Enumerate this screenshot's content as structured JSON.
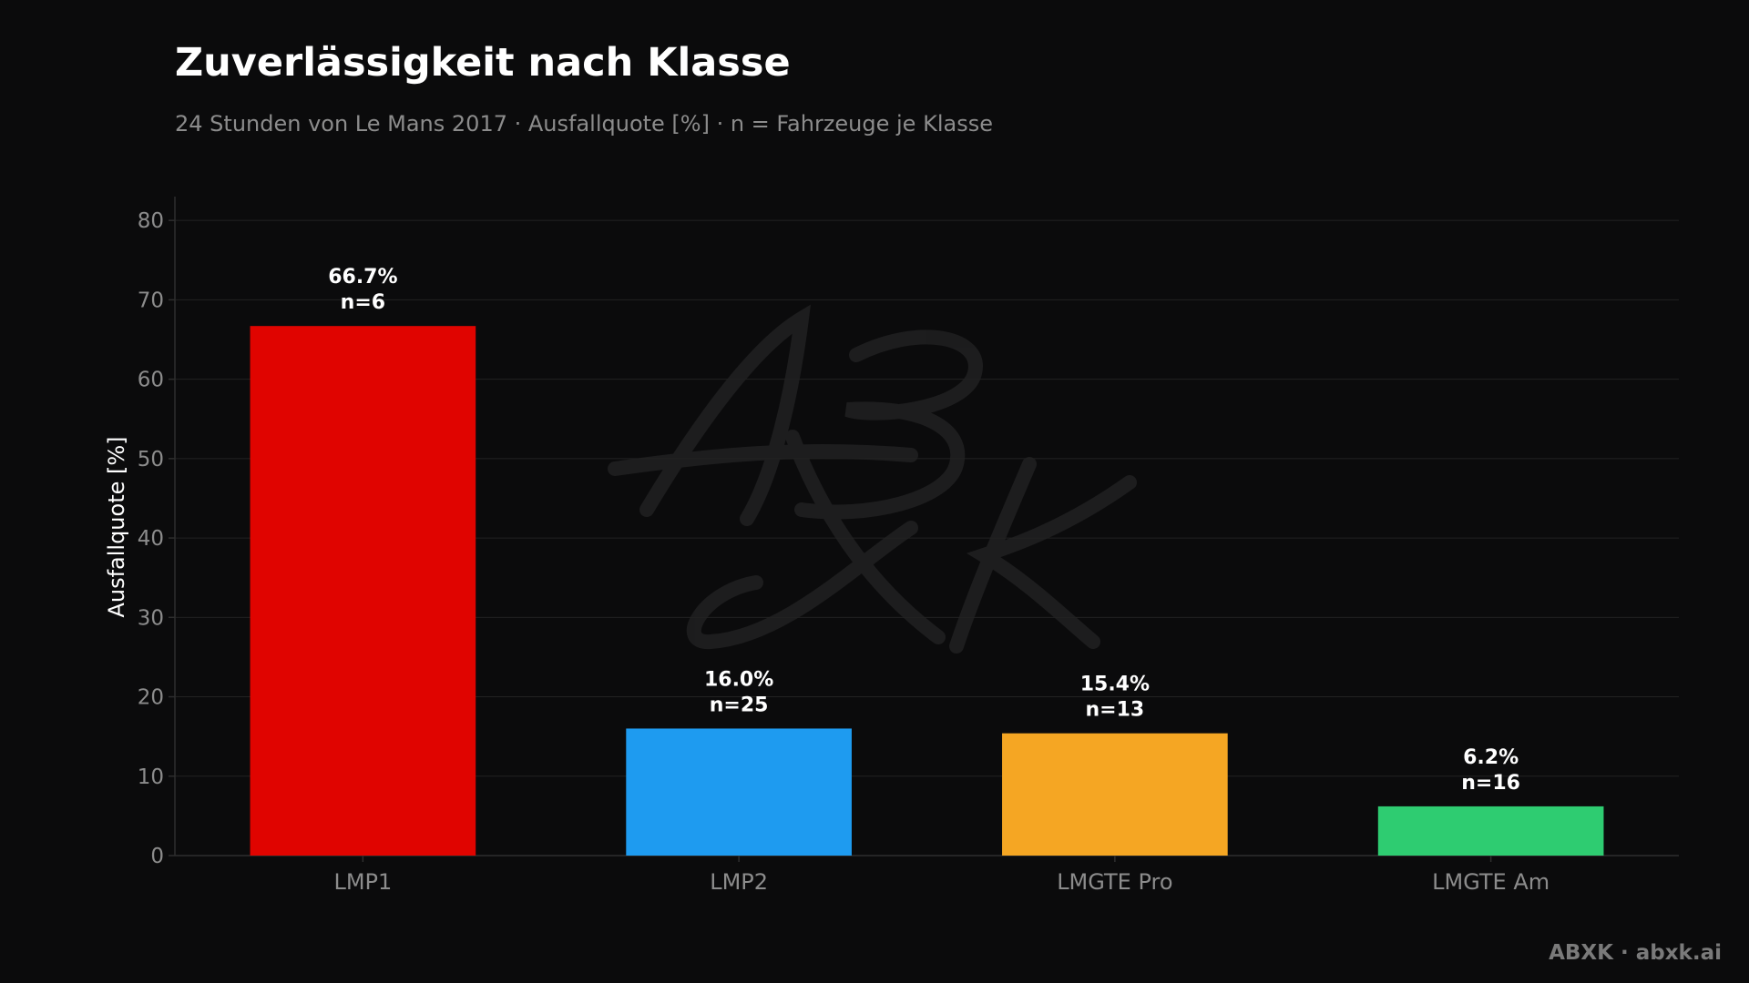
{
  "page": {
    "title": "Zuverlässigkeit nach Klasse",
    "subtitle": "24 Stunden von Le Mans 2017 · Ausfallquote [%] · n = Fahrzeuge je Klasse",
    "watermark": "ABXK",
    "footer": "ABXK · abxk.ai"
  },
  "chart_data": {
    "type": "bar",
    "title": "Zuverlässigkeit nach Klasse",
    "subtitle": "24 Stunden von Le Mans 2017 · Ausfallquote [%] · n = Fahrzeuge je Klasse",
    "xlabel": "",
    "ylabel": "Ausfallquote [%]",
    "ylim": [
      0,
      83
    ],
    "yticks": [
      0,
      10,
      20,
      30,
      40,
      50,
      60,
      70,
      80
    ],
    "grid": true,
    "categories": [
      "LMP1",
      "LMP2",
      "LMGTE Pro",
      "LMGTE Am"
    ],
    "values": [
      66.7,
      16.0,
      15.4,
      6.2
    ],
    "n": [
      6,
      25,
      13,
      16
    ],
    "value_labels": [
      "66.7%",
      "16.0%",
      "15.4%",
      "6.2%"
    ],
    "n_labels": [
      "n=6",
      "n=25",
      "n=13",
      "n=16"
    ],
    "colors": [
      "#e00400",
      "#1e9bf0",
      "#f5a623",
      "#2ecc71"
    ],
    "theme": {
      "background": "#0b0b0c",
      "grid": "#222222",
      "axis": "#2e2e2e",
      "tick_text": "#8c8c8c",
      "label_text": "#ffffff"
    }
  }
}
